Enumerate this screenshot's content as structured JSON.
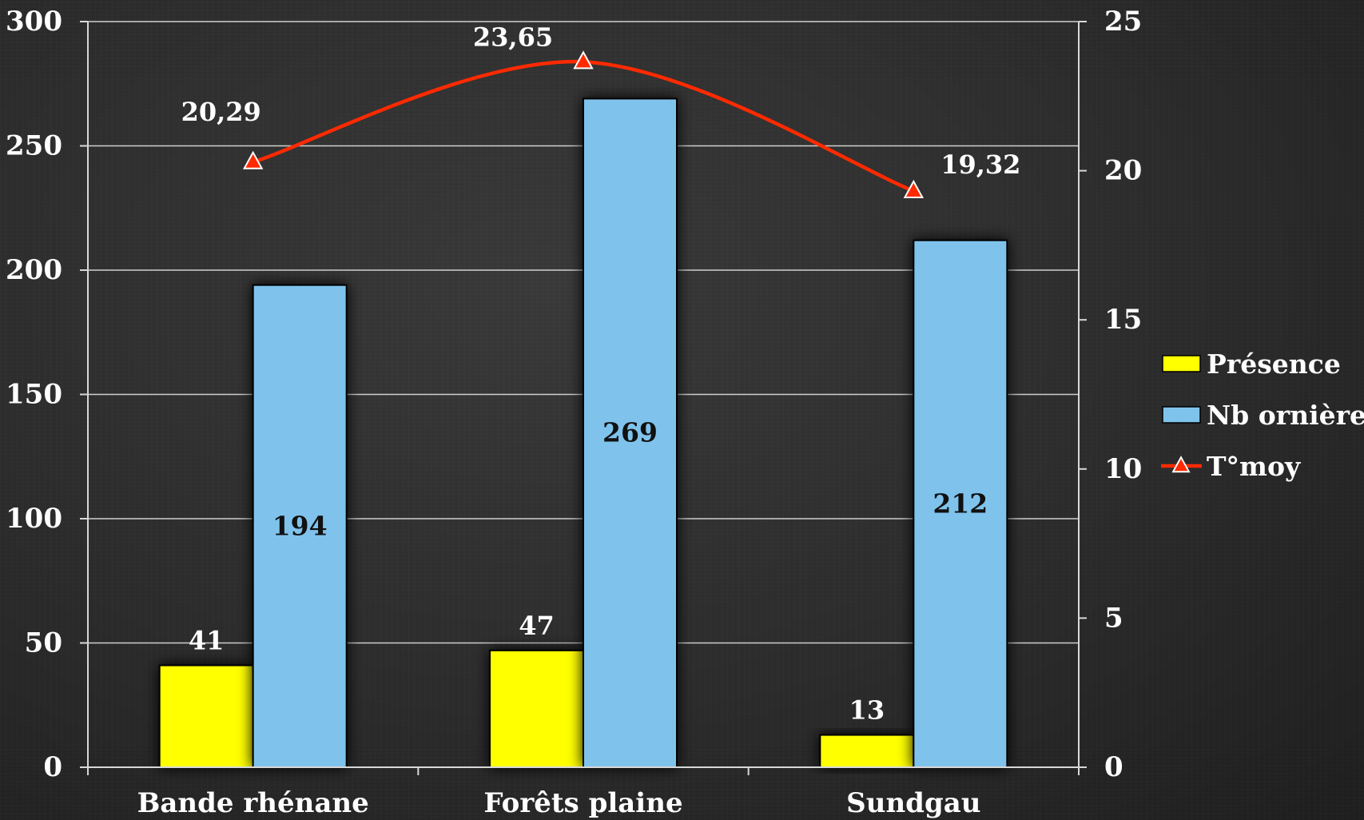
{
  "chart_data": {
    "type": "bar",
    "categories": [
      "Bande rhénane",
      "Forêts plaine",
      "Sundgau"
    ],
    "series": [
      {
        "name": "Présence",
        "type": "bar",
        "axis": "left",
        "values": [
          41,
          47,
          13
        ],
        "color": "#ffff00",
        "labels": [
          "41",
          "47",
          "13"
        ]
      },
      {
        "name": "Nb ornières",
        "type": "bar",
        "axis": "left",
        "values": [
          194,
          269,
          212
        ],
        "color": "#7fc3ec",
        "labels": [
          "194",
          "269",
          "212"
        ]
      },
      {
        "name": "T°moy",
        "type": "line",
        "axis": "right",
        "values": [
          20.29,
          23.65,
          19.32
        ],
        "color": "#ff2a00",
        "marker": "triangle",
        "labels": [
          "20,29",
          "23,65",
          "19,32"
        ]
      }
    ],
    "y_left": {
      "ylim": [
        0,
        300
      ],
      "ticks": [
        "0",
        "50",
        "100",
        "150",
        "200",
        "250",
        "300"
      ]
    },
    "y_right": {
      "ylim": [
        0,
        25
      ],
      "ticks": [
        "0",
        "5",
        "10",
        "15",
        "20",
        "25"
      ]
    },
    "grid": true,
    "legend": "right",
    "title": "",
    "xlabel": "",
    "ylabel": ""
  }
}
